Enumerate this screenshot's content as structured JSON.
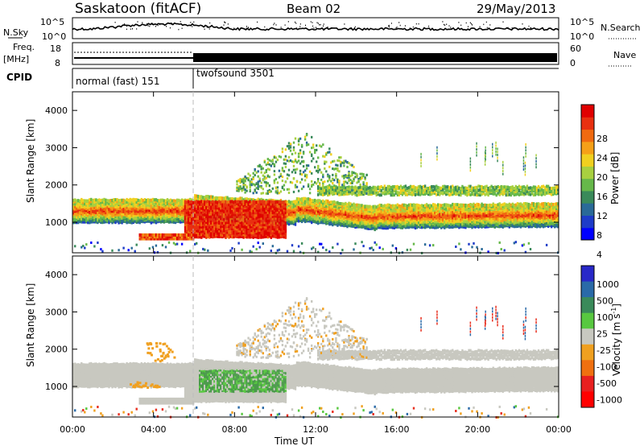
{
  "header": {
    "station": "Saskatoon (fitACF)",
    "beam": "Beam 02",
    "date": "29/May/2013"
  },
  "top_panels": {
    "nsky_label": "N.Sky",
    "nsky_ticks": [
      "10^5",
      "10^0"
    ],
    "nsearch_label": "N.Search",
    "nsearch_ticks": [
      "10^5",
      "10^0"
    ],
    "freq_label": "Freq.",
    "freq_unit": "[MHz]",
    "freq_ticks": [
      "18",
      "8"
    ],
    "nave_label": "Nave",
    "nave_ticks": [
      "60",
      "0"
    ],
    "cpid_label": "CPID",
    "cpid_segments": [
      {
        "label": "normal (fast) 151",
        "start_hour": 0,
        "end_hour": 6
      },
      {
        "label": "twofsound 3501",
        "start_hour": 6,
        "end_hour": 24
      }
    ]
  },
  "chart_data": [
    {
      "type": "heatmap",
      "name": "power",
      "title": "",
      "xlabel": "",
      "ylabel": "Slant Range [km]",
      "xlim_hours": [
        0,
        24
      ],
      "ylim_km": [
        180,
        4500
      ],
      "yticks": [
        "4000",
        "3000",
        "2000",
        "1000"
      ],
      "colorbar": {
        "label": "Power [dB]",
        "ticks": [
          "28",
          "24",
          "20",
          "16",
          "12",
          "8",
          "4"
        ],
        "colors": [
          "#0000ff",
          "#1e3cc8",
          "#2a6a98",
          "#3a8a5a",
          "#66b84a",
          "#a8d040",
          "#f0d020",
          "#f5a018",
          "#f06a10",
          "#e83010",
          "#e00000"
        ]
      },
      "features": [
        {
          "desc": "main echo band",
          "x_hours": [
            0,
            24
          ],
          "range_km": [
            1100,
            1600
          ],
          "power_db": 24
        },
        {
          "desc": "enhanced region",
          "x_hours": [
            5.5,
            10.5
          ],
          "range_km": [
            600,
            1700
          ],
          "power_db": 28
        },
        {
          "desc": "sporadic high echoes",
          "x_hours": [
            8,
            14
          ],
          "range_km": [
            2000,
            3500
          ],
          "power_db": 10
        }
      ]
    },
    {
      "type": "heatmap",
      "name": "velocity",
      "title": "",
      "xlabel": "Time UT",
      "ylabel": "Slant Range [km]",
      "xlim_hours": [
        0,
        24
      ],
      "ylim_km": [
        180,
        4500
      ],
      "yticks": [
        "4000",
        "3000",
        "2000",
        "1000"
      ],
      "xticks": [
        "00:00",
        "04:00",
        "08:00",
        "12:00",
        "16:00",
        "20:00",
        "00:00"
      ],
      "colorbar": {
        "label": "Velocity [m s",
        "label_sup": "-1",
        "label_end": "]",
        "ticks": [
          "1000",
          "500",
          "100",
          "25",
          "-25",
          "-100",
          "-500",
          "-1000"
        ],
        "colors": [
          "#2828c8",
          "#2a6aa8",
          "#3a8a5a",
          "#58c840",
          "#c8c8c0",
          "#f0a020",
          "#f07010",
          "#e82020",
          "#ff0000"
        ]
      },
      "features": [
        {
          "desc": "ground scatter band",
          "x_hours": [
            0,
            24
          ],
          "range_km": [
            1200,
            1700
          ],
          "velocity": 0
        },
        {
          "desc": "positive velocity region",
          "x_hours": [
            6,
            11
          ],
          "range_km": [
            900,
            1500
          ],
          "velocity": 100
        },
        {
          "desc": "negative velocity patches",
          "x_hours": [
            2.5,
            5
          ],
          "range_km": [
            1000,
            2200
          ],
          "velocity": -100
        }
      ]
    }
  ]
}
